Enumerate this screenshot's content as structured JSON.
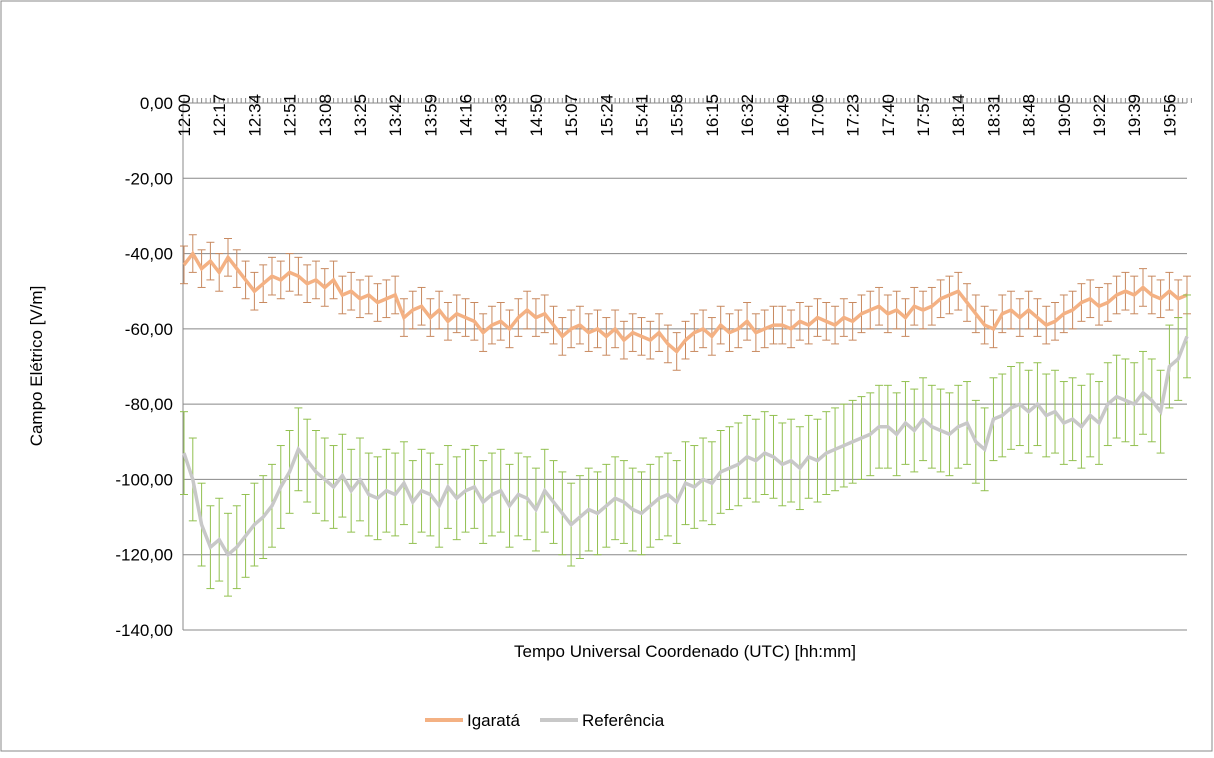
{
  "chart_data": {
    "type": "line",
    "y_label": "Campo Elétrico [V/m]",
    "x_label": "Tempo Universal Coordenado (UTC) [hh:mm]",
    "categories": [
      "12:00",
      null,
      null,
      null,
      "12:17",
      null,
      null,
      null,
      "12:34",
      null,
      null,
      null,
      "12:51",
      null,
      null,
      null,
      "13:08",
      null,
      null,
      null,
      "13:25",
      null,
      null,
      null,
      "13:42",
      null,
      null,
      null,
      "13:59",
      null,
      null,
      null,
      "14:16",
      null,
      null,
      null,
      "14:33",
      null,
      null,
      null,
      "14:50",
      null,
      null,
      null,
      "15:07",
      null,
      null,
      null,
      "15:24",
      null,
      null,
      null,
      "15:41",
      null,
      null,
      null,
      "15:58",
      null,
      null,
      null,
      "16:15",
      null,
      null,
      null,
      "16:32",
      null,
      null,
      null,
      "16:49",
      null,
      null,
      null,
      "17:06",
      null,
      null,
      null,
      "17:23",
      null,
      null,
      null,
      "17:40",
      null,
      null,
      null,
      "17:57",
      null,
      null,
      null,
      "18:14",
      null,
      null,
      null,
      "18:31",
      null,
      null,
      null,
      "18:48",
      null,
      null,
      null,
      "19:05",
      null,
      null,
      null,
      "19:22",
      null,
      null,
      null,
      "19:39",
      null,
      null,
      null,
      "19:56",
      null,
      null
    ],
    "series": [
      {
        "name": "Igaratá",
        "color": "#f4b183",
        "error_color": "#c8895f",
        "error": 5,
        "values": [
          -43,
          -40,
          -44,
          -42,
          -45,
          -41,
          -44,
          -47,
          -50,
          -48,
          -46,
          -47,
          -45,
          -46,
          -48,
          -47,
          -49,
          -47,
          -51,
          -50,
          -52,
          -51,
          -53,
          -52,
          -51,
          -57,
          -55,
          -54,
          -57,
          -55,
          -58,
          -56,
          -57,
          -58,
          -61,
          -59,
          -58,
          -60,
          -57,
          -55,
          -57,
          -56,
          -59,
          -62,
          -60,
          -59,
          -61,
          -60,
          -62,
          -60,
          -63,
          -61,
          -62,
          -63,
          -61,
          -64,
          -66,
          -63,
          -61,
          -60,
          -62,
          -59,
          -61,
          -60,
          -58,
          -61,
          -60,
          -59,
          -59,
          -60,
          -58,
          -59,
          -57,
          -58,
          -59,
          -57,
          -58,
          -56,
          -55,
          -54,
          -56,
          -55,
          -57,
          -54,
          -55,
          -54,
          -52,
          -51,
          -50,
          -53,
          -56,
          -59,
          -60,
          -56,
          -55,
          -57,
          -55,
          -57,
          -59,
          -58,
          -56,
          -55,
          -53,
          -52,
          -54,
          -53,
          -51,
          -50,
          -51,
          -49,
          -51,
          -52,
          -50,
          -52,
          -51
        ]
      },
      {
        "name": "Referência",
        "color": "#c8c8c8",
        "error_color": "#92c050",
        "error": 11,
        "values": [
          -93,
          -100,
          -112,
          -118,
          -116,
          -120,
          -118,
          -115,
          -112,
          -110,
          -107,
          -102,
          -98,
          -92,
          -95,
          -98,
          -100,
          -102,
          -99,
          -103,
          -100,
          -104,
          -105,
          -103,
          -104,
          -101,
          -106,
          -103,
          -104,
          -107,
          -102,
          -105,
          -103,
          -102,
          -106,
          -104,
          -103,
          -107,
          -104,
          -105,
          -108,
          -103,
          -106,
          -109,
          -112,
          -110,
          -108,
          -109,
          -107,
          -105,
          -106,
          -108,
          -109,
          -107,
          -105,
          -104,
          -106,
          -101,
          -102,
          -100,
          -101,
          -98,
          -97,
          -96,
          -94,
          -95,
          -93,
          -94,
          -96,
          -95,
          -97,
          -94,
          -95,
          -93,
          -92,
          -91,
          -90,
          -89,
          -88,
          -86,
          -86,
          -88,
          -85,
          -87,
          -84,
          -86,
          -87,
          -88,
          -86,
          -85,
          -90,
          -92,
          -84,
          -83,
          -81,
          -80,
          -82,
          -80,
          -83,
          -82,
          -85,
          -84,
          -86,
          -83,
          -85,
          -80,
          -78,
          -79,
          -80,
          -77,
          -79,
          -82,
          -70,
          -68,
          -62
        ]
      }
    ],
    "ylim": [
      -140,
      0
    ],
    "yticks": [
      {
        "value": 0,
        "label": "0,00"
      },
      {
        "value": -20,
        "label": "-20,00"
      },
      {
        "value": -40,
        "label": "-40,00"
      },
      {
        "value": -60,
        "label": "-60,00"
      },
      {
        "value": -80,
        "label": "-80,00"
      },
      {
        "value": -100,
        "label": "-100,00"
      },
      {
        "value": -120,
        "label": "-120,00"
      },
      {
        "value": -140,
        "label": "-140,00"
      }
    ],
    "grid": true,
    "legend": "bottom"
  }
}
